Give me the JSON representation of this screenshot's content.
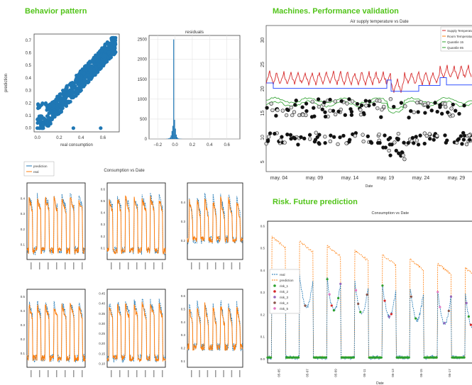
{
  "colors": {
    "title_green": "#52c41a",
    "blue": "#1f77b4",
    "orange": "#ff7f0e",
    "red": "#d62728",
    "green": "#2ca02c",
    "purple": "#9467bd",
    "brown": "#8c564b",
    "pink": "#e377c2"
  },
  "sections": {
    "behavior": "Behavior pattern",
    "machines": "Machines. Performance validation",
    "risk": "Risk. Future prediction"
  },
  "chart_data": [
    {
      "id": "scatter",
      "type": "scatter",
      "xlabel": "real consumption",
      "ylabel": "prediction",
      "xlim": [
        -0.03,
        0.75
      ],
      "ylim": [
        -0.03,
        0.75
      ],
      "xticks": [
        "0.0",
        "0.2",
        "0.4",
        "0.6"
      ],
      "yticks": [
        "0.0",
        "0.1",
        "0.2",
        "0.3",
        "0.4",
        "0.5",
        "0.6",
        "0.7"
      ]
    },
    {
      "id": "residuals",
      "type": "bar",
      "title": "residuals",
      "xlim": [
        -0.3,
        0.75
      ],
      "ylim": [
        0,
        2600
      ],
      "xticks": [
        "−0.2",
        "0.0",
        "0.2",
        "0.4",
        "0.6"
      ],
      "yticks": [
        "0",
        "500",
        "1000",
        "1500",
        "2000",
        "2500"
      ],
      "bins": [
        -0.1,
        -0.08,
        -0.06,
        -0.05,
        -0.04,
        -0.03,
        -0.02,
        -0.01,
        0.0,
        0.01,
        0.02,
        0.03,
        0.04,
        0.06
      ],
      "counts": [
        5,
        15,
        40,
        90,
        200,
        330,
        2500,
        480,
        260,
        110,
        45,
        20,
        8,
        3
      ]
    },
    {
      "id": "air",
      "type": "line",
      "title": "Air supply temperature vs Date",
      "xlabel": "Date",
      "ylim": [
        3,
        33
      ],
      "yticks": [
        "5",
        "10",
        "15",
        "20",
        "25",
        "30"
      ],
      "xticks": [
        "may. 04",
        "may. 09",
        "may. 14",
        "may. 19",
        "may. 24",
        "may. 29"
      ],
      "legend": [
        "Supply Temperature",
        "Room Temperature",
        "Quantile 15",
        "Quantile 85"
      ],
      "legend_position": "top-right",
      "days": 29
    },
    {
      "id": "consumption-grid",
      "type": "line",
      "title": "Consumption vs Date",
      "legend": [
        "prediction",
        "real"
      ],
      "legend_position": "top-left",
      "panels": [
        {
          "yticks": [
            "0.1",
            "0.2",
            "0.3",
            "0.4"
          ],
          "ylim": [
            0.0,
            0.5
          ]
        },
        {
          "yticks": [
            "0.1",
            "0.2",
            "0.3",
            "0.4",
            "0.5",
            "0.6"
          ],
          "ylim": [
            0.0,
            0.65
          ]
        },
        {
          "yticks": [
            "0.2",
            "0.3",
            "0.4"
          ],
          "ylim": [
            0.1,
            0.5
          ]
        },
        {
          "yticks": [
            "0.1",
            "0.2",
            "0.3",
            "0.4",
            "0.5"
          ],
          "ylim": [
            0.0,
            0.55
          ]
        },
        {
          "yticks": [
            "0.10",
            "0.15",
            "0.20",
            "0.25",
            "0.30",
            "0.35",
            "0.40",
            "0.45"
          ],
          "ylim": [
            0.08,
            0.47
          ]
        },
        {
          "yticks": [
            "0.1",
            "0.2",
            "0.3",
            "0.4",
            "0.5",
            "0.6"
          ],
          "ylim": [
            0.05,
            0.65
          ]
        }
      ]
    },
    {
      "id": "risk",
      "type": "line",
      "title": "Consumption vs Date",
      "xlabel": "Date",
      "ylim": [
        -0.02,
        0.62
      ],
      "yticks": [
        "0.0",
        "0.1",
        "0.2",
        "0.3",
        "0.4",
        "0.5",
        "0.6"
      ],
      "xticks": [
        "05-05",
        "05-07",
        "05-09",
        "05-11",
        "05-13",
        "05-15",
        "05-17"
      ],
      "legend": [
        "real",
        "prediction",
        "risk_1",
        "risk_2",
        "risk_3",
        "risk_4",
        "risk_5"
      ],
      "legend_position": "center-left"
    }
  ]
}
